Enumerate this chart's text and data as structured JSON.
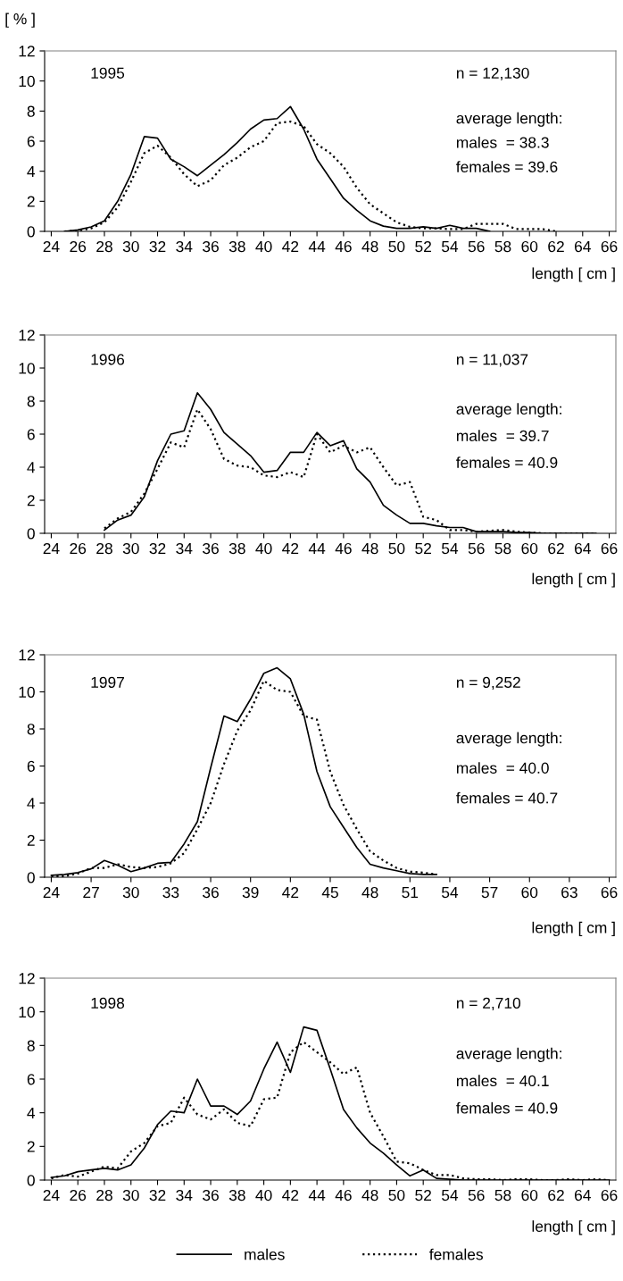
{
  "chart_data": [
    {
      "type": "line",
      "ylabel": "[ % ]",
      "xlabel": "length [ cm ]",
      "annotations": [
        "1995",
        "n = 12,130",
        "average length:",
        "males  = 38.3",
        "females = 39.6"
      ],
      "xlim": [
        23.5,
        66.5
      ],
      "xticks": [
        24,
        26,
        28,
        30,
        32,
        34,
        36,
        38,
        40,
        42,
        44,
        46,
        48,
        50,
        52,
        54,
        56,
        58,
        60,
        62,
        64,
        66
      ],
      "ylim": [
        0,
        12
      ],
      "yticks": [
        0,
        2,
        4,
        6,
        8,
        10,
        12
      ],
      "grid": false,
      "legend": false,
      "x": [
        25,
        26,
        27,
        28,
        29,
        30,
        31,
        32,
        33,
        34,
        35,
        36,
        37,
        38,
        39,
        40,
        41,
        42,
        43,
        44,
        45,
        46,
        47,
        48,
        49,
        50,
        51,
        52,
        53,
        54,
        55,
        56,
        57,
        58,
        59,
        60,
        61,
        62
      ],
      "series": [
        {
          "color": "#000000",
          "line_style": "solid",
          "values": [
            0,
            0.1,
            0.3,
            0.7,
            2.0,
            3.8,
            6.3,
            6.2,
            4.8,
            4.3,
            3.7,
            4.4,
            5.1,
            5.9,
            6.8,
            7.4,
            7.5,
            8.3,
            6.8,
            4.8,
            3.5,
            2.2,
            1.4,
            0.7,
            0.35,
            0.2,
            0.2,
            0.3,
            0.2,
            0.4,
            0.2,
            0.2,
            0,
            null,
            null,
            null,
            null,
            null
          ]
        },
        {
          "color": "#000000",
          "line_style": "dotted",
          "values": [
            0,
            0.05,
            0.2,
            0.6,
            1.6,
            3.3,
            5.2,
            5.7,
            4.9,
            3.8,
            3.0,
            3.4,
            4.4,
            4.9,
            5.6,
            6.0,
            7.2,
            7.3,
            7.0,
            5.8,
            5.2,
            4.3,
            2.9,
            1.8,
            1.2,
            0.6,
            0.3,
            0.2,
            0.2,
            0.15,
            0.15,
            0.5,
            0.5,
            0.5,
            0.15,
            0.15,
            0.15,
            0
          ]
        }
      ]
    },
    {
      "type": "line",
      "xlabel": "length [ cm ]",
      "annotations": [
        "1996",
        "n = 11,037",
        "average length:",
        "males  = 39.7",
        "females = 40.9"
      ],
      "xlim": [
        23.5,
        66.5
      ],
      "xticks": [
        24,
        26,
        28,
        30,
        32,
        34,
        36,
        38,
        40,
        42,
        44,
        46,
        48,
        50,
        52,
        54,
        56,
        58,
        60,
        62,
        64,
        66
      ],
      "ylim": [
        0,
        12
      ],
      "yticks": [
        0,
        2,
        4,
        6,
        8,
        10,
        12
      ],
      "grid": false,
      "legend": false,
      "x": [
        28,
        29,
        30,
        31,
        32,
        33,
        34,
        35,
        36,
        37,
        38,
        39,
        40,
        41,
        42,
        43,
        44,
        45,
        46,
        47,
        48,
        49,
        50,
        51,
        52,
        53,
        54,
        55,
        56,
        57,
        58,
        59,
        60,
        61,
        62,
        63,
        64,
        65
      ],
      "series": [
        {
          "color": "#000000",
          "line_style": "solid",
          "values": [
            0.2,
            0.8,
            1.1,
            2.2,
            4.4,
            6.0,
            6.2,
            8.5,
            7.5,
            6.1,
            5.4,
            4.7,
            3.7,
            3.8,
            4.9,
            4.9,
            6.1,
            5.3,
            5.6,
            3.9,
            3.1,
            1.7,
            1.1,
            0.6,
            0.6,
            0.45,
            0.35,
            0.35,
            0.1,
            0.1,
            0.1,
            0.05,
            0.05,
            0,
            0,
            0,
            0,
            0
          ]
        },
        {
          "color": "#000000",
          "line_style": "dotted",
          "values": [
            0.3,
            0.9,
            1.3,
            2.4,
            3.9,
            5.5,
            5.2,
            7.5,
            6.3,
            4.5,
            4.1,
            4.0,
            3.5,
            3.4,
            3.7,
            3.4,
            6.0,
            4.9,
            5.3,
            4.9,
            5.2,
            4.0,
            2.9,
            3.1,
            1.0,
            0.8,
            0.2,
            0.2,
            0.1,
            0.15,
            0.2,
            0.1,
            0.05,
            0,
            0,
            0,
            0,
            0
          ]
        }
      ]
    },
    {
      "type": "line",
      "xlabel": "length [ cm ]",
      "annotations": [
        "1997",
        "n = 9,252",
        "average length:",
        "males  = 40.0",
        "females = 40.7"
      ],
      "xlim": [
        23.5,
        66.5
      ],
      "xticks": [
        24,
        27,
        30,
        33,
        36,
        39,
        42,
        45,
        48,
        51,
        54,
        57,
        60,
        63,
        66
      ],
      "ylim": [
        0,
        12
      ],
      "yticks": [
        0,
        2,
        4,
        6,
        8,
        10,
        12
      ],
      "grid": false,
      "legend": false,
      "x": [
        24,
        25,
        26,
        27,
        28,
        29,
        30,
        31,
        32,
        33,
        34,
        35,
        36,
        37,
        38,
        39,
        40,
        41,
        42,
        43,
        44,
        45,
        46,
        47,
        48,
        49,
        50,
        51,
        52,
        53
      ],
      "series": [
        {
          "color": "#000000",
          "line_style": "solid",
          "values": [
            0.1,
            0.15,
            0.25,
            0.45,
            0.9,
            0.65,
            0.3,
            0.5,
            0.75,
            0.8,
            1.8,
            3.0,
            5.9,
            8.7,
            8.4,
            9.6,
            11.0,
            11.3,
            10.7,
            8.8,
            5.7,
            3.8,
            2.7,
            1.6,
            0.7,
            0.5,
            0.35,
            0.2,
            0.15,
            0.15
          ]
        },
        {
          "color": "#000000",
          "line_style": "dotted",
          "values": [
            0.05,
            0.05,
            0.2,
            0.5,
            0.5,
            0.7,
            0.55,
            0.5,
            0.55,
            0.75,
            1.3,
            2.6,
            4.0,
            6.1,
            7.9,
            9.0,
            10.6,
            10.1,
            10.0,
            8.7,
            8.5,
            5.7,
            3.9,
            2.6,
            1.4,
            0.9,
            0.5,
            0.3,
            0.25,
            0.15
          ]
        }
      ]
    },
    {
      "type": "line",
      "xlabel": "length [ cm ]",
      "annotations": [
        "1998",
        "n = 2,710",
        "average length:",
        "males  = 40.1",
        "females = 40.9"
      ],
      "xlim": [
        23.5,
        66.5
      ],
      "xticks": [
        24,
        26,
        28,
        30,
        32,
        34,
        36,
        38,
        40,
        42,
        44,
        46,
        48,
        50,
        52,
        54,
        56,
        58,
        60,
        62,
        64,
        66
      ],
      "ylim": [
        0,
        12
      ],
      "yticks": [
        0,
        2,
        4,
        6,
        8,
        10,
        12
      ],
      "grid": false,
      "legend": "bottom",
      "x": [
        24,
        25,
        26,
        27,
        28,
        29,
        30,
        31,
        32,
        33,
        34,
        35,
        36,
        37,
        38,
        39,
        40,
        41,
        42,
        43,
        44,
        45,
        46,
        47,
        48,
        49,
        50,
        51,
        52,
        53,
        54,
        55,
        56,
        57,
        58,
        59,
        60,
        61,
        62,
        63,
        64,
        65,
        66
      ],
      "series": [
        {
          "name": "males",
          "color": "#000000",
          "line_style": "solid",
          "values": [
            0.15,
            0.25,
            0.5,
            0.6,
            0.7,
            0.6,
            0.9,
            1.9,
            3.3,
            4.1,
            4.0,
            6.0,
            4.4,
            4.4,
            3.9,
            4.7,
            6.6,
            8.2,
            6.4,
            9.1,
            8.9,
            6.6,
            4.2,
            3.1,
            2.2,
            1.6,
            0.9,
            0.25,
            0.6,
            0.1,
            0.05,
            0,
            0,
            0,
            0,
            0,
            0,
            0,
            0,
            0,
            0,
            0,
            0
          ]
        },
        {
          "name": "females",
          "color": "#000000",
          "line_style": "dotted",
          "values": [
            0.1,
            0.3,
            0.2,
            0.5,
            0.8,
            0.7,
            1.7,
            2.2,
            3.2,
            3.4,
            4.9,
            3.9,
            3.6,
            4.2,
            3.4,
            3.2,
            4.8,
            4.9,
            7.6,
            8.2,
            7.6,
            7.0,
            6.3,
            6.7,
            4.0,
            2.6,
            1.1,
            1.0,
            0.6,
            0.3,
            0.3,
            0.1,
            0.05,
            0.05,
            0,
            0.05,
            0.05,
            0,
            0,
            0.05,
            0,
            0.05,
            0
          ]
        }
      ]
    }
  ]
}
